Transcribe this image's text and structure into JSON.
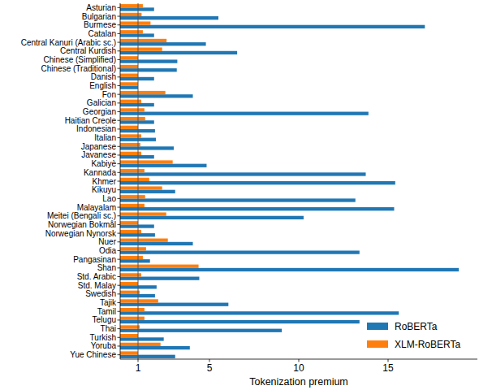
{
  "chart_data": {
    "type": "bar",
    "orientation": "horizontal",
    "x_label": "Tokenization premium",
    "categories": [
      "Asturian",
      "Bulgarian",
      "Burmese",
      "Catalan",
      "Central Kanuri (Arabic sc.)",
      "Central Kurdish",
      "Chinese (Simplified)",
      "Chinese (Traditional)",
      "Danish",
      "English",
      "Fon",
      "Galician",
      "Georgian",
      "Haitian Creole",
      "Indonesian",
      "Italian",
      "Japanese",
      "Javanese",
      "Kabiyè",
      "Kannada",
      "Khmer",
      "Kikuyu",
      "Lao",
      "Malayalam",
      "Meitei (Bengali sc.)",
      "Norwegian Bokmål",
      "Norwegian Nynorsk",
      "Nuer",
      "Odia",
      "Pangasinan",
      "Shan",
      "Std. Arabic",
      "Std. Malay",
      "Swedish",
      "Tajik",
      "Tamil",
      "Telugu",
      "Thai",
      "Turkish",
      "Yoruba",
      "Yue Chinese"
    ],
    "series": [
      {
        "name": "RoBERTa",
        "color": "#1f77b4",
        "values": [
          1.9,
          5.5,
          17.06,
          1.9,
          4.8,
          6.55,
          3.2,
          3.17,
          1.9,
          1.0,
          4.07,
          1.9,
          13.9,
          1.9,
          1.95,
          2.0,
          3.0,
          1.9,
          4.84,
          13.75,
          15.4,
          3.08,
          13.17,
          15.34,
          10.27,
          1.9,
          1.95,
          4.07,
          13.4,
          1.67,
          18.96,
          4.43,
          2.04,
          1.95,
          6.06,
          15.6,
          13.4,
          9.05,
          2.44,
          3.9,
          3.08
        ]
      },
      {
        "name": "XLM-RoBERTa",
        "color": "#ff7f0e",
        "values": [
          1.27,
          1.2,
          1.7,
          1.27,
          2.6,
          2.35,
          1.0,
          1.0,
          1.0,
          1.0,
          2.53,
          1.18,
          1.36,
          1.4,
          1.0,
          1.18,
          1.13,
          1.18,
          2.94,
          1.36,
          1.63,
          2.35,
          1.4,
          1.36,
          2.58,
          1.0,
          1.18,
          2.67,
          1.45,
          1.27,
          4.39,
          1.18,
          1.0,
          1.09,
          2.13,
          1.36,
          1.36,
          1.09,
          1.0,
          2.26,
          1.0
        ]
      }
    ],
    "xlim": [
      0,
      20
    ],
    "xticks": [
      1,
      5,
      10,
      15
    ],
    "reference_line": 1,
    "grid": false,
    "legend": "lower right"
  }
}
